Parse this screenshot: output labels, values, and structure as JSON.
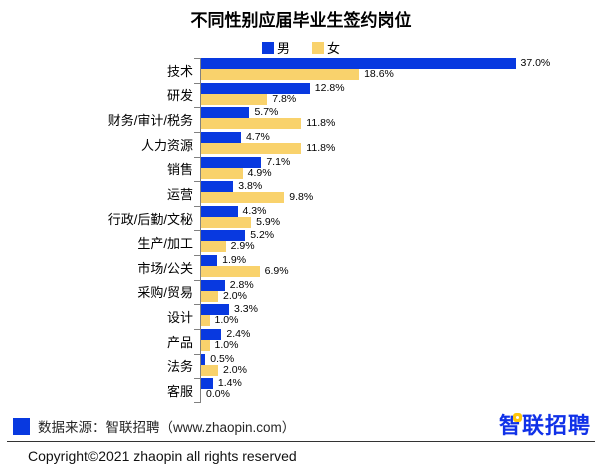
{
  "title": "不同性别应届毕业生签约岗位",
  "colors": {
    "male": "#0839e0",
    "female": "#f9d26c",
    "axis": "#808080",
    "logo_blue": "#1031e8",
    "logo_dot_yellow": "#ffc60a"
  },
  "legend": {
    "male_label": "男",
    "female_label": "女"
  },
  "chart_data": {
    "type": "bar",
    "orientation": "horizontal",
    "title": "不同性别应届毕业生签约岗位",
    "xlabel": "",
    "ylabel": "",
    "xlim": [
      0,
      40
    ],
    "grid": false,
    "legend_position": "top",
    "data_labels": true,
    "value_suffix": "%",
    "categories": [
      "技术",
      "研发",
      "财务/审计/税务",
      "人力资源",
      "销售",
      "运营",
      "行政/后勤/文秘",
      "生产/加工",
      "市场/公关",
      "采购/贸易",
      "设计",
      "产品",
      "法务",
      "客服"
    ],
    "series": [
      {
        "name": "男",
        "color": "#0839e0",
        "values": [
          37.0,
          12.8,
          5.7,
          4.7,
          7.1,
          3.8,
          4.3,
          5.2,
          1.9,
          2.8,
          3.3,
          2.4,
          0.5,
          1.4
        ]
      },
      {
        "name": "女",
        "color": "#f9d26c",
        "values": [
          18.6,
          7.8,
          11.8,
          11.8,
          4.9,
          9.8,
          5.9,
          2.9,
          6.9,
          2.0,
          1.0,
          1.0,
          2.0,
          0.0
        ]
      }
    ]
  },
  "footer": {
    "source_text": "数据来源：智联招聘（www.zhaopin.com）",
    "logo_text": "智联招聘",
    "copyright": "Copyright©2021 zhaopin all rights reserved"
  }
}
